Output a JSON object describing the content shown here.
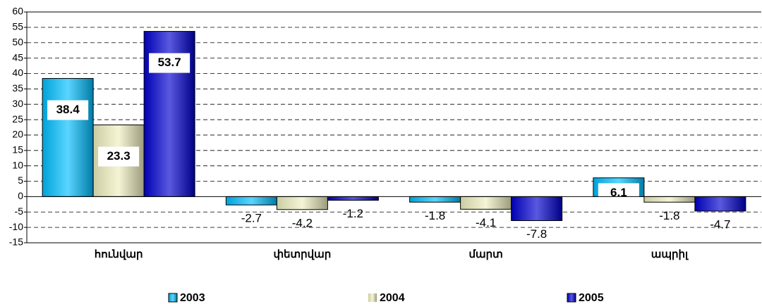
{
  "chart_data": {
    "type": "bar",
    "categories": [
      "հունվար",
      "փետրվար",
      "մարտ",
      "ապրիլ"
    ],
    "series": [
      {
        "name": "2003",
        "color": "#00bfff",
        "values": [
          38.4,
          -2.7,
          -1.8,
          6.1
        ]
      },
      {
        "name": "2004",
        "color": "#f0f0c0",
        "values": [
          23.3,
          -4.2,
          -4.1,
          -1.8
        ]
      },
      {
        "name": "2005",
        "color": "#0000d0",
        "values": [
          53.7,
          -1.2,
          -7.8,
          -4.7
        ]
      }
    ],
    "ylim": [
      -15,
      60
    ],
    "yticks": [
      -15,
      -10,
      -5,
      0,
      5,
      10,
      15,
      20,
      25,
      30,
      35,
      40,
      45,
      50,
      55,
      60
    ],
    "grid": true,
    "legend": "bottom"
  }
}
